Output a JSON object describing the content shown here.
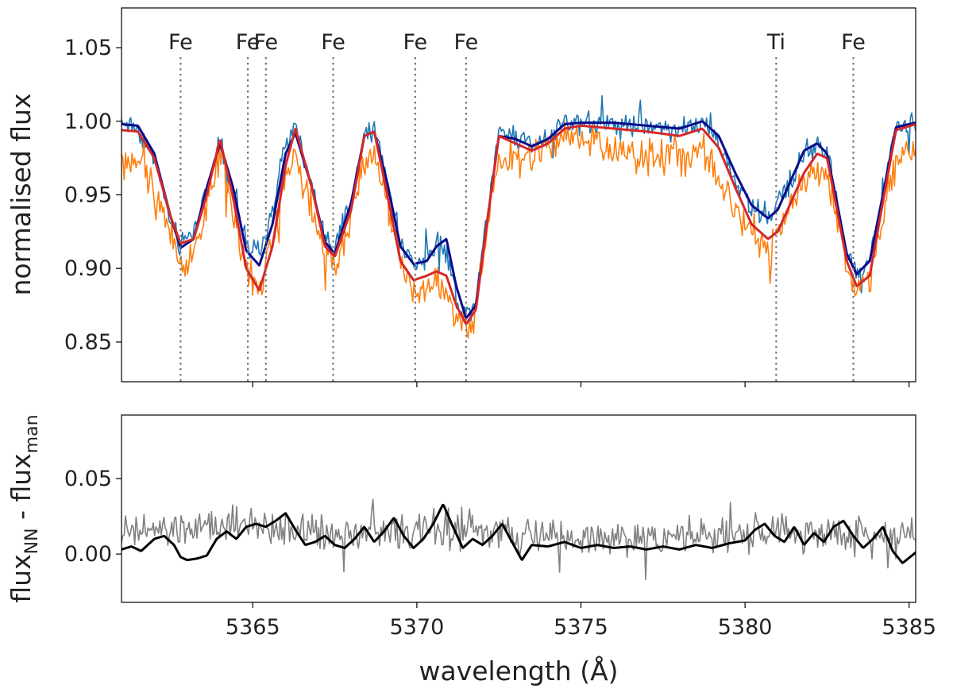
{
  "chart_data": [
    {
      "type": "line",
      "panel": "top",
      "xlabel": "",
      "ylabel": "normalised flux",
      "xlim": [
        5361.0,
        5385.2
      ],
      "ylim": [
        0.823,
        1.077
      ],
      "yticks": [
        0.85,
        0.9,
        0.95,
        1.0,
        1.05
      ],
      "ytick_labels": [
        "0.85",
        "0.90",
        "0.95",
        "1.00",
        "1.05"
      ],
      "xticks": [
        5365,
        5370,
        5375,
        5380,
        5385
      ],
      "show_xtick_labels": false,
      "grid": false,
      "line_markers": [
        {
          "label": "Fe",
          "x": 5362.8
        },
        {
          "label": "Fe",
          "x": 5364.85
        },
        {
          "label": "Fe",
          "x": 5365.4
        },
        {
          "label": "Fe",
          "x": 5367.45
        },
        {
          "label": "Fe",
          "x": 5369.95
        },
        {
          "label": "Fe",
          "x": 5371.5
        },
        {
          "label": "Ti",
          "x": 5380.95
        },
        {
          "label": "Fe",
          "x": 5383.3
        }
      ],
      "series": [
        {
          "name": "observed spectrum (blue)",
          "color": "#1f77b4",
          "style": "noisy",
          "noise_amp": 0.012,
          "x": [
            5361.0,
            5361.5,
            5362.0,
            5362.5,
            5362.8,
            5363.2,
            5363.6,
            5364.0,
            5364.4,
            5364.8,
            5365.2,
            5365.6,
            5366.0,
            5366.3,
            5366.8,
            5367.2,
            5367.5,
            5368.0,
            5368.4,
            5368.7,
            5369.1,
            5369.5,
            5369.9,
            5370.3,
            5370.6,
            5370.9,
            5371.2,
            5371.5,
            5371.8,
            5372.1,
            5372.5,
            5373.0,
            5373.5,
            5374.0,
            5374.5,
            5375.0,
            5376.0,
            5377.0,
            5378.0,
            5378.7,
            5379.2,
            5379.7,
            5380.2,
            5380.7,
            5381.0,
            5381.4,
            5381.8,
            5382.2,
            5382.5,
            5382.8,
            5383.1,
            5383.4,
            5383.8,
            5384.2,
            5384.6,
            5385.2
          ],
          "values": [
            1.0,
            0.995,
            0.975,
            0.93,
            0.915,
            0.925,
            0.955,
            0.988,
            0.955,
            0.915,
            0.908,
            0.94,
            0.985,
            0.995,
            0.955,
            0.92,
            0.912,
            0.945,
            0.99,
            0.995,
            0.96,
            0.915,
            0.905,
            0.905,
            0.92,
            0.912,
            0.88,
            0.868,
            0.88,
            0.93,
            0.995,
            0.99,
            0.985,
            0.99,
            1.0,
            1.0,
            0.998,
            0.998,
            0.995,
            0.998,
            0.985,
            0.96,
            0.94,
            0.935,
            0.945,
            0.96,
            0.978,
            0.985,
            0.98,
            0.945,
            0.91,
            0.895,
            0.905,
            0.95,
            0.995,
            1.0
          ]
        },
        {
          "name": "observed spectrum (orange)",
          "color": "#ff7f0e",
          "style": "noisy",
          "noise_amp": 0.018,
          "x": [
            5361.0,
            5361.5,
            5362.0,
            5362.5,
            5362.8,
            5363.2,
            5363.6,
            5364.0,
            5364.4,
            5364.8,
            5365.2,
            5365.6,
            5366.0,
            5366.3,
            5366.8,
            5367.2,
            5367.5,
            5368.0,
            5368.4,
            5368.7,
            5369.1,
            5369.5,
            5369.9,
            5370.3,
            5370.6,
            5370.9,
            5371.2,
            5371.5,
            5371.8,
            5372.1,
            5372.5,
            5373.0,
            5373.5,
            5374.0,
            5374.5,
            5375.0,
            5376.0,
            5377.0,
            5378.0,
            5378.7,
            5379.2,
            5379.7,
            5380.2,
            5380.7,
            5381.0,
            5381.4,
            5381.8,
            5382.2,
            5382.5,
            5382.8,
            5383.1,
            5383.4,
            5383.8,
            5384.2,
            5384.6,
            5385.2
          ],
          "values": [
            0.975,
            0.97,
            0.955,
            0.925,
            0.9,
            0.91,
            0.945,
            0.975,
            0.94,
            0.9,
            0.885,
            0.92,
            0.965,
            0.975,
            0.945,
            0.91,
            0.9,
            0.935,
            0.975,
            0.98,
            0.95,
            0.905,
            0.885,
            0.885,
            0.89,
            0.88,
            0.868,
            0.858,
            0.868,
            0.925,
            0.975,
            0.975,
            0.975,
            0.98,
            0.99,
            0.985,
            0.98,
            0.978,
            0.975,
            0.978,
            0.96,
            0.94,
            0.925,
            0.915,
            0.92,
            0.94,
            0.96,
            0.97,
            0.965,
            0.935,
            0.9,
            0.885,
            0.895,
            0.935,
            0.975,
            0.98
          ]
        },
        {
          "name": "model (dark blue)",
          "color": "#0b0b8c",
          "style": "smooth",
          "x": [
            5361.0,
            5361.5,
            5362.0,
            5362.5,
            5362.8,
            5363.2,
            5363.6,
            5364.0,
            5364.4,
            5364.8,
            5365.2,
            5365.6,
            5366.0,
            5366.3,
            5366.8,
            5367.2,
            5367.5,
            5368.0,
            5368.4,
            5368.7,
            5369.1,
            5369.5,
            5369.9,
            5370.3,
            5370.6,
            5370.9,
            5371.2,
            5371.5,
            5371.8,
            5372.1,
            5372.5,
            5373.0,
            5373.5,
            5374.0,
            5374.5,
            5375.0,
            5376.0,
            5377.0,
            5378.0,
            5378.7,
            5379.2,
            5379.7,
            5380.2,
            5380.7,
            5381.0,
            5381.4,
            5381.8,
            5382.2,
            5382.5,
            5382.8,
            5383.1,
            5383.4,
            5383.8,
            5384.2,
            5384.6,
            5385.2
          ],
          "values": [
            0.998,
            0.997,
            0.978,
            0.935,
            0.914,
            0.92,
            0.955,
            0.985,
            0.955,
            0.912,
            0.902,
            0.93,
            0.978,
            0.992,
            0.955,
            0.918,
            0.91,
            0.945,
            0.99,
            0.993,
            0.958,
            0.915,
            0.903,
            0.905,
            0.915,
            0.92,
            0.888,
            0.866,
            0.875,
            0.925,
            0.99,
            0.988,
            0.983,
            0.988,
            0.998,
            0.999,
            0.999,
            0.997,
            0.995,
            1.0,
            0.99,
            0.965,
            0.943,
            0.934,
            0.94,
            0.96,
            0.98,
            0.985,
            0.978,
            0.945,
            0.91,
            0.896,
            0.905,
            0.95,
            0.996,
            0.999
          ]
        },
        {
          "name": "model (red)",
          "color": "#d62728",
          "style": "smooth",
          "x": [
            5361.0,
            5361.5,
            5362.0,
            5362.5,
            5362.8,
            5363.2,
            5363.6,
            5364.0,
            5364.4,
            5364.8,
            5365.2,
            5365.6,
            5366.0,
            5366.3,
            5366.8,
            5367.2,
            5367.5,
            5368.0,
            5368.4,
            5368.7,
            5369.1,
            5369.5,
            5369.9,
            5370.3,
            5370.6,
            5370.9,
            5371.2,
            5371.5,
            5371.8,
            5372.1,
            5372.5,
            5373.0,
            5373.5,
            5374.0,
            5374.5,
            5375.0,
            5376.0,
            5377.0,
            5378.0,
            5378.7,
            5379.2,
            5379.7,
            5380.2,
            5380.7,
            5381.0,
            5381.4,
            5381.8,
            5382.2,
            5382.5,
            5382.8,
            5383.1,
            5383.4,
            5383.8,
            5384.2,
            5384.6,
            5385.2
          ],
          "values": [
            0.994,
            0.993,
            0.975,
            0.935,
            0.917,
            0.92,
            0.95,
            0.988,
            0.948,
            0.9,
            0.885,
            0.915,
            0.97,
            0.995,
            0.955,
            0.915,
            0.908,
            0.94,
            0.99,
            0.993,
            0.95,
            0.905,
            0.892,
            0.895,
            0.898,
            0.895,
            0.875,
            0.862,
            0.872,
            0.925,
            0.99,
            0.985,
            0.98,
            0.985,
            0.995,
            0.997,
            0.995,
            0.993,
            0.99,
            0.995,
            0.982,
            0.955,
            0.93,
            0.92,
            0.925,
            0.945,
            0.965,
            0.978,
            0.975,
            0.94,
            0.905,
            0.888,
            0.895,
            0.945,
            0.994,
            0.998
          ]
        }
      ]
    },
    {
      "type": "line",
      "panel": "bottom",
      "xlabel": "wavelength (Å)",
      "ylabel": {
        "base1": "flux",
        "sub1": "NN",
        "mid": " - flux",
        "sub2": "man"
      },
      "xlim": [
        5361.0,
        5385.2
      ],
      "ylim": [
        -0.032,
        0.092
      ],
      "yticks": [
        0.0,
        0.05
      ],
      "ytick_labels": [
        "0.00",
        "0.05"
      ],
      "xticks": [
        5365,
        5370,
        5375,
        5380,
        5385
      ],
      "xtick_labels": [
        "5365",
        "5370",
        "5375",
        "5380",
        "5385"
      ],
      "grid": false,
      "series": [
        {
          "name": "residual (grey)",
          "color": "#808080",
          "style": "noisy",
          "noise_amp": 0.017,
          "x": [
            5361.0,
            5363.0,
            5365.0,
            5367.0,
            5369.0,
            5371.0,
            5373.0,
            5375.0,
            5377.0,
            5379.0,
            5381.0,
            5383.0,
            5385.2
          ],
          "values": [
            0.014,
            0.016,
            0.018,
            0.015,
            0.014,
            0.016,
            0.012,
            0.01,
            0.011,
            0.012,
            0.014,
            0.013,
            0.012
          ]
        },
        {
          "name": "residual (black)",
          "color": "#000000",
          "style": "smooth",
          "x": [
            5361.0,
            5361.3,
            5361.6,
            5362.0,
            5362.3,
            5362.6,
            5362.8,
            5363.0,
            5363.3,
            5363.6,
            5363.9,
            5364.2,
            5364.5,
            5364.8,
            5365.1,
            5365.4,
            5365.7,
            5366.0,
            5366.3,
            5366.6,
            5366.9,
            5367.2,
            5367.5,
            5367.8,
            5368.1,
            5368.4,
            5368.7,
            5369.0,
            5369.3,
            5369.6,
            5369.9,
            5370.2,
            5370.5,
            5370.8,
            5371.1,
            5371.4,
            5371.7,
            5372.0,
            5372.3,
            5372.6,
            5372.9,
            5373.2,
            5373.5,
            5374.0,
            5374.5,
            5375.0,
            5375.5,
            5376.0,
            5376.5,
            5377.0,
            5377.5,
            5378.0,
            5378.5,
            5379.0,
            5379.5,
            5380.0,
            5380.3,
            5380.6,
            5380.9,
            5381.2,
            5381.5,
            5381.8,
            5382.1,
            5382.4,
            5382.7,
            5383.0,
            5383.3,
            5383.6,
            5383.9,
            5384.2,
            5384.5,
            5384.8,
            5385.2
          ],
          "values": [
            0.003,
            0.005,
            0.002,
            0.01,
            0.012,
            0.006,
            -0.002,
            -0.004,
            -0.003,
            -0.001,
            0.01,
            0.015,
            0.01,
            0.018,
            0.02,
            0.018,
            0.022,
            0.027,
            0.016,
            0.006,
            0.008,
            0.012,
            0.006,
            0.004,
            0.01,
            0.018,
            0.008,
            0.015,
            0.024,
            0.012,
            0.004,
            0.01,
            0.02,
            0.033,
            0.018,
            0.004,
            0.01,
            0.006,
            0.012,
            0.02,
            0.008,
            -0.004,
            0.006,
            0.005,
            0.008,
            0.004,
            0.006,
            0.004,
            0.005,
            0.003,
            0.005,
            0.003,
            0.006,
            0.004,
            0.007,
            0.009,
            0.016,
            0.02,
            0.012,
            0.008,
            0.018,
            0.006,
            0.014,
            0.008,
            0.018,
            0.022,
            0.012,
            0.004,
            0.01,
            0.018,
            0.002,
            -0.006,
            0.001
          ]
        }
      ]
    }
  ]
}
